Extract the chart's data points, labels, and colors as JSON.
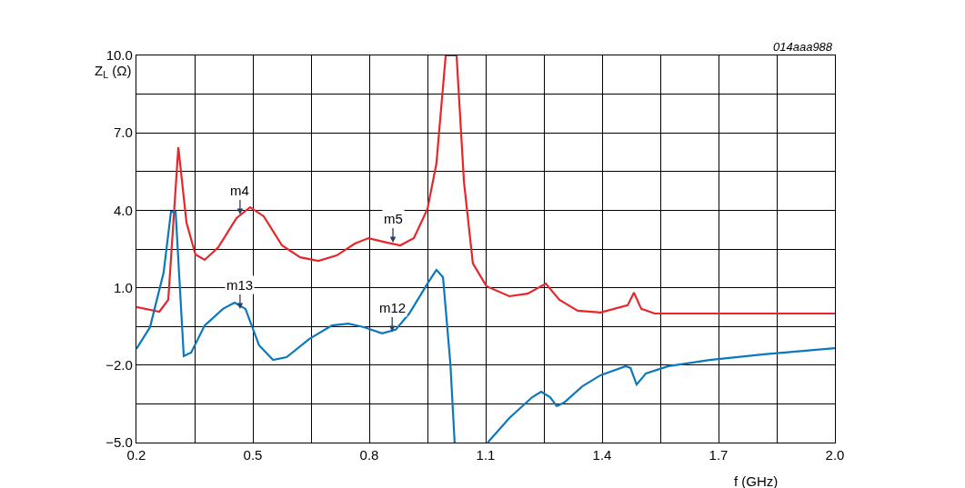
{
  "chart_data": {
    "type": "line",
    "xlabel": "f (GHz)",
    "ylabel": "Z$_{L}$ (Ω)",
    "xlim": [
      0.2,
      2.0
    ],
    "ylim": [
      -5.0,
      10.0
    ],
    "xticks": [
      {
        "value": 0.2,
        "label": "0.2"
      },
      {
        "value": 0.35,
        "label": null
      },
      {
        "value": 0.5,
        "label": "0.5"
      },
      {
        "value": 0.65,
        "label": null
      },
      {
        "value": 0.8,
        "label": "0.8"
      },
      {
        "value": 0.95,
        "label": null
      },
      {
        "value": 1.1,
        "label": "1.1"
      },
      {
        "value": 1.25,
        "label": null
      },
      {
        "value": 1.4,
        "label": "1.4"
      },
      {
        "value": 1.55,
        "label": null
      },
      {
        "value": 1.7,
        "label": "1.7"
      },
      {
        "value": 1.85,
        "label": null
      },
      {
        "value": 2.0,
        "label": "2.0"
      }
    ],
    "yticks": [
      {
        "value": -5.0,
        "label": "−5.0"
      },
      {
        "value": -3.5,
        "label": null
      },
      {
        "value": -2.0,
        "label": "−2.0"
      },
      {
        "value": -0.5,
        "label": null
      },
      {
        "value": 1.0,
        "label": "1.0"
      },
      {
        "value": 2.5,
        "label": null
      },
      {
        "value": 4.0,
        "label": "4.0"
      },
      {
        "value": 5.5,
        "label": null
      },
      {
        "value": 7.0,
        "label": "7.0"
      },
      {
        "value": 8.5,
        "label": null
      },
      {
        "value": 10.0,
        "label": "10.0"
      }
    ],
    "grid": true,
    "marker": "none",
    "line_style": "solid",
    "series": [
      {
        "color": "#e8262a",
        "x": [
          0.2,
          0.259,
          0.282,
          0.308,
          0.329,
          0.352,
          0.376,
          0.411,
          0.458,
          0.493,
          0.528,
          0.575,
          0.622,
          0.669,
          0.716,
          0.763,
          0.798,
          0.845,
          0.88,
          0.915,
          0.95,
          0.973,
          0.997,
          1.025,
          1.044,
          1.067,
          1.102,
          1.161,
          1.208,
          1.255,
          1.29,
          1.337,
          1.396,
          1.466,
          1.482,
          1.501,
          1.536,
          2.0
        ],
        "values": [
          0.25,
          0.07,
          0.53,
          6.44,
          3.52,
          2.29,
          2.08,
          2.57,
          3.7,
          4.12,
          3.77,
          2.64,
          2.18,
          2.04,
          2.25,
          2.71,
          2.92,
          2.75,
          2.64,
          2.92,
          4.05,
          5.81,
          10.0,
          10.0,
          5.1,
          1.94,
          1.06,
          0.67,
          0.77,
          1.16,
          0.53,
          0.11,
          0.04,
          0.32,
          0.81,
          0.18,
          0.0,
          0.0
        ]
      },
      {
        "color": "#0a78be",
        "x": [
          0.2,
          0.235,
          0.27,
          0.289,
          0.301,
          0.322,
          0.341,
          0.376,
          0.423,
          0.453,
          0.481,
          0.516,
          0.552,
          0.587,
          0.645,
          0.704,
          0.746,
          0.786,
          0.833,
          0.868,
          0.903,
          0.95,
          0.973,
          0.99,
          1.009,
          1.02,
          1.06,
          1.105,
          1.161,
          1.22,
          1.243,
          1.266,
          1.283,
          1.302,
          1.349,
          1.396,
          1.461,
          1.473,
          1.489,
          1.513,
          1.571,
          1.677,
          1.817,
          2.0
        ],
        "values": [
          -1.37,
          -0.53,
          1.58,
          3.94,
          3.94,
          -1.65,
          -1.51,
          -0.46,
          0.18,
          0.42,
          0.18,
          -1.23,
          -1.8,
          -1.69,
          -0.99,
          -0.46,
          -0.39,
          -0.53,
          -0.77,
          -0.63,
          0.0,
          1.16,
          1.69,
          1.41,
          -1.94,
          -5.0,
          null,
          -5.0,
          -4.05,
          -3.24,
          -3.03,
          -3.24,
          -3.59,
          -3.45,
          -2.82,
          -2.39,
          -2.04,
          -2.11,
          -2.75,
          -2.32,
          -2.04,
          -1.8,
          -1.58,
          -1.34
        ]
      }
    ],
    "annotations": [
      {
        "text": "m4",
        "x": 0.467,
        "y": 3.84
      },
      {
        "text": "m5",
        "x": 0.861,
        "y": 2.75
      },
      {
        "text": "m13",
        "x": 0.467,
        "y": 0.18
      },
      {
        "text": "m12",
        "x": 0.859,
        "y": -0.7
      },
      "014aaa988"
    ]
  }
}
